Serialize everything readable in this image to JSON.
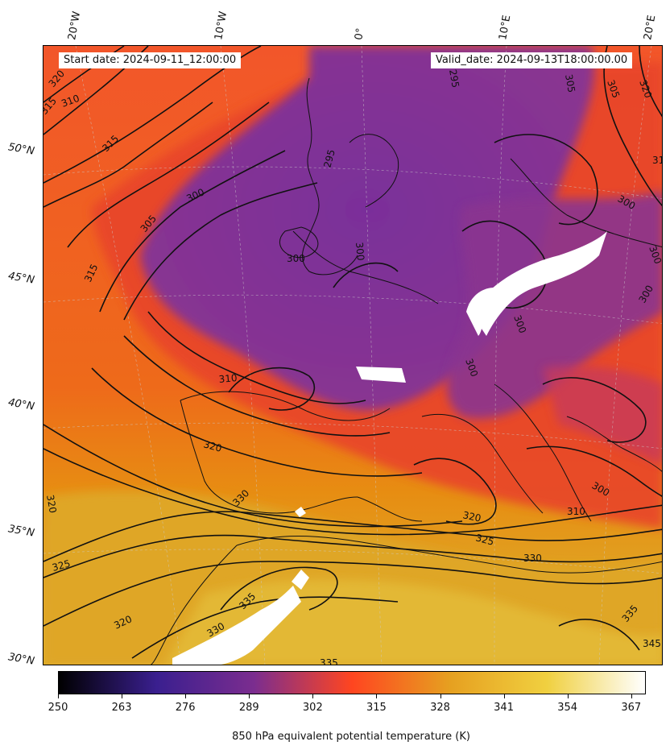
{
  "figure": {
    "start_label": "Start date: 2024-09-11_12:00:00",
    "valid_label": "Valid_date: 2024-09-13T18:00:00.00"
  },
  "axes": {
    "lon_labels": [
      "20°W",
      "10°W",
      "0°",
      "10°E",
      "20°E"
    ],
    "lat_labels": [
      "50°N",
      "45°N",
      "40°N",
      "35°N",
      "30°N"
    ]
  },
  "colorbar": {
    "label": "850 hPa equivalent potential temperature (K)",
    "ticks": [
      "250",
      "263",
      "276",
      "289",
      "302",
      "315",
      "328",
      "341",
      "354",
      "367"
    ],
    "min": 250,
    "max": 370,
    "colormap": "CMRmap-like (black → indigo → purple → red-orange → gold → pale yellow)",
    "colors": [
      "#000000",
      "#3a1f8f",
      "#7b2d8f",
      "#ff4520",
      "#e6a020",
      "#f0d040",
      "#ffffff"
    ]
  },
  "contours": {
    "labels": [
      "295",
      "300",
      "305",
      "310",
      "315",
      "320",
      "325",
      "330",
      "335",
      "345"
    ]
  },
  "map": {
    "projection": "lambert-conformal",
    "region": "Europe / North Africa / Mediterranean"
  }
}
